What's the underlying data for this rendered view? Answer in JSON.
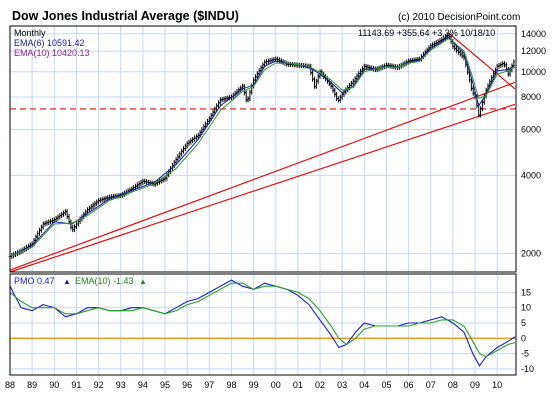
{
  "header": {
    "title": "Dow Jones Industrial Average ($INDU)",
    "copyright": "(c) 2010 DecisionPoint.com",
    "period": "Monthly",
    "quote": "11143.69  +355.64  +3.3%  10/18/10",
    "ema6_label": "EMA(6) 10591.42",
    "ema10_label": "EMA(10) 10420.13"
  },
  "pmo_legend": {
    "pmo_label": "PMO  0.47",
    "pmo_arrow": "▲",
    "ema_label": "EMA(10)  -1.43",
    "ema_arrow": "▲"
  },
  "colors": {
    "background": "#ffffff",
    "grid": "#c7d7f2",
    "border": "#000000",
    "candles": "#000000",
    "ema6": "#1a1aa8",
    "ema10": "#2a9a2a",
    "trendline": "#dd1111",
    "support_line": "#dd1111",
    "pmo": "#1a1acc",
    "pmo_signal": "#2aa02a",
    "zero_line": "#e58c00",
    "title": "#000000",
    "ema6_text": "#1a1a99",
    "ema10_text": "#9a1a9a"
  },
  "chart_data": [
    {
      "type": "line",
      "title": "Dow Jones Industrial Average ($INDU)",
      "period": "Monthly",
      "y_scale": "log",
      "ylim": [
        1700,
        15000
      ],
      "xlim": [
        1988,
        2010.85
      ],
      "y_ticks": [
        2000,
        4000,
        6000,
        8000,
        10000,
        12000,
        14000
      ],
      "y_tick_labels": [
        "2000",
        "4000",
        "6000",
        "8000",
        "10000",
        "12000",
        "14000"
      ],
      "x_ticks": [
        1988,
        1989,
        1990,
        1991,
        1992,
        1993,
        1994,
        1995,
        1996,
        1997,
        1998,
        1999,
        2000,
        2001,
        2002,
        2003,
        2004,
        2005,
        2006,
        2007,
        2008,
        2009,
        2010
      ],
      "x_tick_labels": [
        "88",
        "89",
        "90",
        "91",
        "92",
        "93",
        "94",
        "95",
        "96",
        "97",
        "98",
        "99",
        "00",
        "01",
        "02",
        "03",
        "04",
        "05",
        "06",
        "07",
        "08",
        "09",
        "10"
      ],
      "grid": true,
      "series": [
        {
          "kind": "price",
          "x": [
            1988.0,
            1988.5,
            1989.0,
            1989.5,
            1990.0,
            1990.5,
            1990.8,
            1991.0,
            1991.5,
            1992.0,
            1992.5,
            1993.0,
            1993.5,
            1994.0,
            1994.5,
            1995.0,
            1995.5,
            1996.0,
            1996.5,
            1997.0,
            1997.5,
            1998.0,
            1998.5,
            1998.7,
            1999.0,
            1999.5,
            2000.0,
            2000.5,
            2001.0,
            2001.5,
            2001.75,
            2002.0,
            2002.5,
            2002.8,
            2003.0,
            2003.5,
            2004.0,
            2004.5,
            2005.0,
            2005.5,
            2006.0,
            2006.5,
            2007.0,
            2007.5,
            2007.8,
            2008.0,
            2008.5,
            2008.85,
            2009.0,
            2009.17,
            2009.5,
            2010.0,
            2010.3,
            2010.5,
            2010.8
          ],
          "y": [
            1950,
            2050,
            2180,
            2600,
            2700,
            2900,
            2450,
            2600,
            2950,
            3200,
            3300,
            3350,
            3550,
            3800,
            3700,
            3900,
            4600,
            5300,
            5700,
            6600,
            7800,
            8000,
            8800,
            7600,
            9300,
            10900,
            11200,
            10700,
            10600,
            10500,
            8800,
            10000,
            8800,
            7700,
            8200,
            9200,
            10500,
            10200,
            10600,
            10400,
            11000,
            11200,
            12600,
            13300,
            13900,
            12500,
            11300,
            8500,
            8000,
            6800,
            8500,
            10500,
            10800,
            9800,
            11143.69
          ]
        },
        {
          "name": "EMA(6) 10591.42",
          "kind": "ema6",
          "x": [
            1988.0,
            1989.0,
            1990.0,
            1990.8,
            1991.5,
            1992.5,
            1993.5,
            1994.5,
            1995.5,
            1996.5,
            1997.5,
            1998.5,
            1999.0,
            1999.5,
            2000.0,
            2000.5,
            2001.0,
            2001.5,
            2002.0,
            2002.5,
            2003.0,
            2003.5,
            2004.0,
            2004.5,
            2005.0,
            2005.5,
            2006.0,
            2006.5,
            2007.0,
            2007.5,
            2007.8,
            2008.0,
            2008.5,
            2008.85,
            2009.17,
            2009.5,
            2010.0,
            2010.5,
            2010.8
          ],
          "y": [
            1950,
            2150,
            2650,
            2600,
            2850,
            3250,
            3500,
            3750,
            4400,
            5500,
            7400,
            8600,
            8900,
            10500,
            11000,
            10800,
            10600,
            10400,
            9800,
            9100,
            8300,
            8800,
            10200,
            10300,
            10500,
            10400,
            10900,
            11100,
            12300,
            13100,
            13600,
            13000,
            11800,
            9400,
            7400,
            8200,
            10100,
            10200,
            10591.42
          ]
        },
        {
          "name": "EMA(10) 10420.13",
          "kind": "ema10",
          "x": [
            1988.0,
            1989.0,
            1990.0,
            1990.8,
            1991.5,
            1992.5,
            1993.5,
            1994.5,
            1995.5,
            1996.5,
            1997.5,
            1998.5,
            1999.0,
            1999.5,
            2000.0,
            2000.5,
            2001.0,
            2001.5,
            2002.0,
            2002.5,
            2003.0,
            2003.5,
            2004.0,
            2004.5,
            2005.0,
            2005.5,
            2006.0,
            2006.5,
            2007.0,
            2007.5,
            2007.8,
            2008.0,
            2008.5,
            2008.85,
            2009.17,
            2009.5,
            2010.0,
            2010.5,
            2010.8
          ],
          "y": [
            1950,
            2120,
            2600,
            2620,
            2800,
            3200,
            3450,
            3700,
            4250,
            5300,
            7100,
            8400,
            8800,
            10200,
            10800,
            10800,
            10650,
            10500,
            9950,
            9300,
            8500,
            8700,
            10000,
            10250,
            10450,
            10400,
            10800,
            11000,
            12100,
            12900,
            13400,
            13100,
            12000,
            9800,
            7900,
            8100,
            9800,
            10100,
            10420.13
          ]
        }
      ],
      "lines": [
        {
          "kind": "resistance",
          "x": [
            2007.8,
            2010.8
          ],
          "y": [
            14100,
            8600
          ]
        },
        {
          "kind": "trend_upper",
          "x": [
            1988.0,
            2010.8
          ],
          "y": [
            1730,
            9100
          ]
        },
        {
          "kind": "trend_lower",
          "x": [
            1988.0,
            2010.8
          ],
          "y": [
            1700,
            7500
          ]
        }
      ],
      "hlines": [
        {
          "kind": "support_dashed",
          "y": 7200
        }
      ]
    },
    {
      "type": "line",
      "title": "PMO",
      "ylim": [
        -12,
        21
      ],
      "xlim": [
        1988,
        2010.85
      ],
      "y_ticks": [
        -10,
        -5,
        0,
        5,
        10,
        15
      ],
      "y_tick_labels": [
        "-10",
        "-5",
        "0",
        "5",
        "10",
        "15"
      ],
      "grid": true,
      "zero_line": 0,
      "series": [
        {
          "name": "PMO 0.47",
          "kind": "pmo",
          "x": [
            1988.0,
            1988.5,
            1989.0,
            1989.5,
            1990.0,
            1990.5,
            1991.0,
            1991.5,
            1992.0,
            1992.5,
            1993.0,
            1993.5,
            1994.0,
            1994.5,
            1995.0,
            1995.5,
            1996.0,
            1996.5,
            1997.0,
            1997.5,
            1998.0,
            1998.5,
            1999.0,
            1999.5,
            2000.0,
            2000.5,
            2001.0,
            2001.5,
            2002.0,
            2002.5,
            2002.85,
            2003.2,
            2003.6,
            2004.0,
            2004.5,
            2005.0,
            2005.5,
            2006.0,
            2006.5,
            2007.0,
            2007.5,
            2008.0,
            2008.5,
            2008.9,
            2009.2,
            2009.5,
            2010.0,
            2010.5,
            2010.8
          ],
          "y": [
            17,
            10,
            9,
            11,
            10,
            7,
            8,
            10,
            10,
            9,
            9,
            10,
            10,
            9,
            8,
            10,
            12,
            13,
            15,
            17,
            19,
            17,
            16,
            18,
            17,
            16,
            14,
            11,
            6,
            1,
            -3,
            -2,
            2,
            5,
            4,
            4,
            4,
            5,
            5,
            6,
            7,
            5,
            2,
            -5,
            -9,
            -6,
            -3,
            -1,
            0.47
          ]
        },
        {
          "name": "EMA(10) -1.43",
          "kind": "pmo_signal",
          "x": [
            1988.0,
            1988.5,
            1989.0,
            1989.5,
            1990.0,
            1990.5,
            1991.0,
            1991.5,
            1992.0,
            1992.5,
            1993.0,
            1993.5,
            1994.0,
            1994.5,
            1995.0,
            1995.5,
            1996.0,
            1996.5,
            1997.0,
            1997.5,
            1998.0,
            1998.5,
            1999.0,
            1999.5,
            2000.0,
            2000.5,
            2001.0,
            2001.5,
            2002.0,
            2002.5,
            2002.85,
            2003.2,
            2003.6,
            2004.0,
            2004.5,
            2005.0,
            2005.5,
            2006.0,
            2006.5,
            2007.0,
            2007.5,
            2008.0,
            2008.5,
            2008.9,
            2009.2,
            2009.5,
            2010.0,
            2010.5,
            2010.8
          ],
          "y": [
            15,
            12,
            10,
            10,
            10,
            8,
            8,
            9,
            10,
            9,
            9,
            9,
            10,
            9,
            8,
            9,
            11,
            12,
            14,
            16,
            18,
            18,
            16,
            17,
            17,
            16,
            15,
            13,
            9,
            4,
            0,
            -2,
            0,
            3,
            4,
            4,
            4,
            4,
            5,
            5,
            6,
            6,
            4,
            -1,
            -5,
            -6,
            -4,
            -2,
            -1.43
          ]
        }
      ]
    }
  ]
}
